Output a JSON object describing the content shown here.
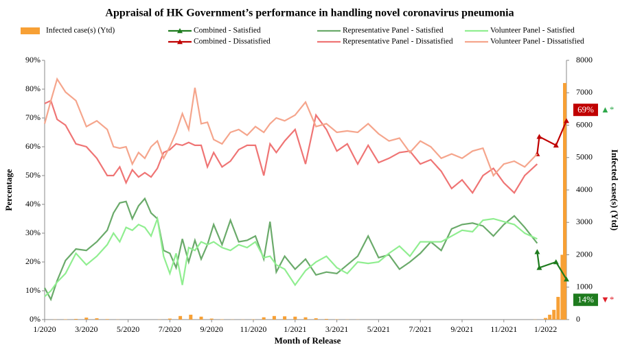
{
  "chart_data": {
    "type": "line",
    "title": "Appraisal of HK Government’s performance in handling novel coronavirus pneumonia",
    "x_label": "Month of Release",
    "y_label": "Percentage",
    "y2_label": "Infected case(s) (Ytd)",
    "xlim": [
      0,
      25
    ],
    "xticks": [
      {
        "value": 0,
        "label": "1/2020"
      },
      {
        "value": 2,
        "label": "3/2020"
      },
      {
        "value": 4,
        "label": "5/2020"
      },
      {
        "value": 6,
        "label": "7/2020"
      },
      {
        "value": 8,
        "label": "9/2020"
      },
      {
        "value": 10,
        "label": "11/2020"
      },
      {
        "value": 12,
        "label": "1/2021"
      },
      {
        "value": 14,
        "label": "3/2021"
      },
      {
        "value": 16,
        "label": "5/2021"
      },
      {
        "value": 18,
        "label": "7/2021"
      },
      {
        "value": 20,
        "label": "9/2021"
      },
      {
        "value": 22,
        "label": "11/2021"
      },
      {
        "value": 24,
        "label": "1/2022"
      }
    ],
    "ylim": [
      0,
      90
    ],
    "yticks": [
      {
        "value": 0,
        "label": "0%"
      },
      {
        "value": 10,
        "label": "10%"
      },
      {
        "value": 20,
        "label": "20%"
      },
      {
        "value": 30,
        "label": "30%"
      },
      {
        "value": 40,
        "label": "40%"
      },
      {
        "value": 50,
        "label": "50%"
      },
      {
        "value": 60,
        "label": "60%"
      },
      {
        "value": 70,
        "label": "70%"
      },
      {
        "value": 80,
        "label": "80%"
      },
      {
        "value": 90,
        "label": "90%"
      }
    ],
    "y2lim": [
      0,
      8000
    ],
    "y2ticks": [
      0,
      1000,
      2000,
      3000,
      4000,
      5000,
      6000,
      7000,
      8000
    ],
    "x": [
      0,
      0.3,
      0.6,
      1.0,
      1.5,
      2.0,
      2.5,
      3.0,
      3.3,
      3.6,
      3.9,
      4.2,
      4.5,
      4.8,
      5.1,
      5.4,
      5.7,
      6.0,
      6.3,
      6.6,
      6.9,
      7.2,
      7.5,
      7.8,
      8.1,
      8.5,
      8.9,
      9.3,
      9.7,
      10.1,
      10.5,
      10.8,
      11.1,
      11.5,
      12.0,
      12.5,
      13.0,
      13.5,
      14.0,
      14.5,
      15.0,
      15.5,
      16.0,
      16.5,
      17.0,
      17.5,
      18.0,
      18.5,
      19.0,
      19.5,
      20.0,
      20.5,
      21.0,
      21.5,
      22.0,
      22.5,
      23.0,
      23.6
    ],
    "series": [
      {
        "name": "Infected case(s) (Ytd)",
        "type": "bar",
        "axis": "y2",
        "color": "#f7a035",
        "x": [
          0,
          0.5,
          1,
          1.5,
          2,
          2.5,
          3,
          3.5,
          4,
          4.5,
          5,
          5.5,
          6,
          6.5,
          7,
          7.5,
          8,
          8.5,
          9,
          9.5,
          10,
          10.5,
          11,
          11.5,
          12,
          12.5,
          13,
          13.5,
          14,
          14.5,
          15,
          15.5,
          16,
          16.5,
          17,
          17.5,
          18,
          18.5,
          19,
          19.5,
          20,
          20.5,
          21,
          21.5,
          22,
          22.5,
          23,
          23.5,
          24,
          24.2,
          24.4,
          24.6,
          24.8,
          24.95
        ],
        "values": [
          0,
          5,
          10,
          20,
          60,
          40,
          15,
          5,
          0,
          0,
          0,
          5,
          30,
          110,
          150,
          90,
          30,
          10,
          5,
          5,
          10,
          70,
          110,
          100,
          90,
          70,
          40,
          20,
          10,
          5,
          5,
          0,
          0,
          0,
          0,
          0,
          0,
          0,
          0,
          0,
          0,
          0,
          0,
          0,
          0,
          0,
          0,
          5,
          50,
          150,
          300,
          700,
          2000,
          7300
        ]
      },
      {
        "name": "Combined - Satisfied",
        "type": "line",
        "marker": "triangle",
        "color": "#1e7b1e",
        "x": [
          23.6,
          23.7,
          24.5,
          25
        ],
        "values": [
          23.5,
          18,
          20,
          14
        ],
        "value_labels": [
          null,
          null,
          null,
          "14%"
        ]
      },
      {
        "name": "Combined - Dissatisfied",
        "type": "line",
        "marker": "triangle",
        "color": "#c00000",
        "x": [
          23.6,
          23.7,
          24.5,
          25
        ],
        "values": [
          57.5,
          63.5,
          60.5,
          69
        ],
        "value_labels": [
          null,
          null,
          null,
          "69%"
        ]
      },
      {
        "name": "Representative Panel - Satisfied",
        "type": "line",
        "color": "#6aaa6a",
        "values": [
          11,
          7,
          13.5,
          20.5,
          24.5,
          24,
          27,
          31,
          37,
          40.5,
          41,
          35,
          39.5,
          42,
          37,
          35,
          24,
          23,
          18,
          28,
          20,
          27.5,
          21,
          26,
          33,
          26,
          34.5,
          27,
          27.5,
          29,
          21,
          34,
          16.5,
          22,
          17.5,
          21,
          15.5,
          16.5,
          16,
          19,
          22,
          29,
          21.5,
          22.5,
          17.5,
          20,
          23,
          27,
          24,
          31.5,
          33,
          33.5,
          32.5,
          29,
          33,
          36,
          32,
          26.5
        ]
      },
      {
        "name": "Representative Panel - Dissatisfied",
        "type": "line",
        "color": "#ef7474",
        "values": [
          75,
          76,
          69.5,
          67.5,
          61,
          60,
          56,
          50,
          50,
          53,
          47.5,
          52,
          49.5,
          51,
          49.5,
          52.5,
          58,
          59,
          61,
          60.5,
          61.5,
          60.5,
          60.5,
          53,
          58,
          53,
          55,
          59,
          60.5,
          60.5,
          50,
          61,
          58,
          62,
          66,
          54,
          71,
          66,
          58.5,
          61,
          54,
          60.5,
          54.5,
          56,
          58,
          58.5,
          54,
          55.5,
          51.5,
          45.5,
          48.5,
          44,
          50,
          52.5,
          47.5,
          44,
          50,
          54
        ]
      },
      {
        "name": "Volunteer Panel - Satisfied",
        "type": "line",
        "color": "#90ee90",
        "values": [
          8,
          10,
          13,
          16,
          23,
          19,
          22,
          26,
          30,
          27,
          32,
          31,
          33,
          32,
          29,
          35,
          22,
          16,
          23,
          12,
          25,
          24,
          27,
          26,
          27,
          25,
          24,
          26,
          25,
          27,
          21.5,
          22,
          19,
          17.5,
          12,
          17,
          20,
          22,
          18,
          16,
          20,
          19.5,
          20,
          23,
          25.5,
          22,
          27,
          27,
          27,
          29,
          31,
          30.5,
          34.5,
          35,
          34,
          33,
          30,
          28
        ]
      },
      {
        "name": "Volunteer Panel - Dissatisfied",
        "type": "line",
        "color": "#f5a58c",
        "values": [
          68,
          76,
          83.5,
          79,
          76,
          67,
          69,
          66,
          60,
          59.5,
          60,
          54,
          58,
          56,
          60,
          62,
          56,
          60,
          65,
          71.5,
          66,
          80.5,
          68,
          68.5,
          62.5,
          61,
          65,
          66,
          64,
          67,
          65,
          68,
          70,
          69,
          71,
          75.5,
          67,
          68,
          65,
          65.5,
          65,
          68,
          64.5,
          62,
          63,
          58,
          62,
          60,
          56,
          57.5,
          56,
          58.5,
          59.5,
          50,
          54,
          55,
          53,
          57.5
        ]
      }
    ],
    "annotations": [
      "▲*",
      "▼*"
    ]
  }
}
